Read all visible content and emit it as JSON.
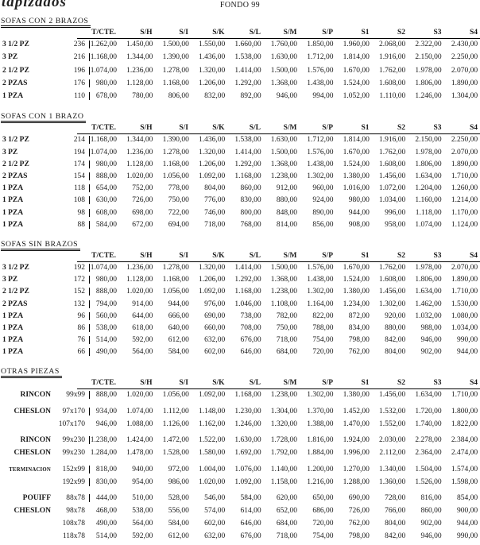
{
  "header": {
    "logo": "tapizados",
    "title": "FONDO 99"
  },
  "columns": [
    "T/CTE.",
    "S/H",
    "S/I",
    "S/K",
    "S/L",
    "S/M",
    "S/P",
    "S1",
    "S2",
    "S3",
    "S4"
  ],
  "sections": [
    {
      "title": "SOFAS CON 2 BRAZOS",
      "rows": [
        {
          "label": "3 1/2 PZ",
          "size": "236",
          "prices": [
            "1.262,00",
            "1.450,00",
            "1.500,00",
            "1.550,00",
            "1.660,00",
            "1.760,00",
            "1.850,00",
            "1.960,00",
            "2.068,00",
            "2.322,00",
            "2.430,00"
          ]
        },
        {
          "label": "3 PZ",
          "size": "216",
          "prices": [
            "1.168,00",
            "1.344,00",
            "1.390,00",
            "1.436,00",
            "1.538,00",
            "1.630,00",
            "1.712,00",
            "1.814,00",
            "1.916,00",
            "2.150,00",
            "2.250,00"
          ]
        },
        {
          "label": "2 1/2 PZ",
          "size": "196",
          "prices": [
            "1.074,00",
            "1.236,00",
            "1.278,00",
            "1.320,00",
            "1.414,00",
            "1.500,00",
            "1.576,00",
            "1.670,00",
            "1.762,00",
            "1.978,00",
            "2.070,00"
          ]
        },
        {
          "label": "2 PZAS",
          "size": "176",
          "prices": [
            "980,00",
            "1.128,00",
            "1.168,00",
            "1.206,00",
            "1.292,00",
            "1.368,00",
            "1.438,00",
            "1.524,00",
            "1.608,00",
            "1.806,00",
            "1.890,00"
          ]
        },
        {
          "label": "1 PZA",
          "size": "110",
          "prices": [
            "678,00",
            "780,00",
            "806,00",
            "832,00",
            "892,00",
            "946,00",
            "994,00",
            "1.052,00",
            "1.110,00",
            "1.246,00",
            "1.304,00"
          ]
        }
      ]
    },
    {
      "title": "SOFAS CON 1 BRAZO",
      "rows": [
        {
          "label": "3 1/2 PZ",
          "size": "214",
          "prices": [
            "1.168,00",
            "1.344,00",
            "1.390,00",
            "1.436,00",
            "1.538,00",
            "1.630,00",
            "1.712,00",
            "1.814,00",
            "1.916,00",
            "2.150,00",
            "2.250,00"
          ]
        },
        {
          "label": "3 PZ",
          "size": "194",
          "prices": [
            "1.074,00",
            "1.236,00",
            "1.278,00",
            "1.320,00",
            "1.414,00",
            "1.500,00",
            "1.576,00",
            "1.670,00",
            "1.762,00",
            "1.978,00",
            "2.070,00"
          ]
        },
        {
          "label": "2 1/2 PZ",
          "size": "174",
          "prices": [
            "980,00",
            "1.128,00",
            "1.168,00",
            "1.206,00",
            "1.292,00",
            "1.368,00",
            "1.438,00",
            "1.524,00",
            "1.608,00",
            "1.806,00",
            "1.890,00"
          ]
        },
        {
          "label": "2 PZAS",
          "size": "154",
          "prices": [
            "888,00",
            "1.020,00",
            "1.056,00",
            "1.092,00",
            "1.168,00",
            "1.238,00",
            "1.302,00",
            "1.380,00",
            "1.456,00",
            "1.634,00",
            "1.710,00"
          ]
        },
        {
          "label": "1 PZA",
          "size": "118",
          "prices": [
            "654,00",
            "752,00",
            "778,00",
            "804,00",
            "860,00",
            "912,00",
            "960,00",
            "1.016,00",
            "1.072,00",
            "1.204,00",
            "1.260,00"
          ]
        },
        {
          "label": "1 PZA",
          "size": "108",
          "prices": [
            "630,00",
            "726,00",
            "750,00",
            "776,00",
            "830,00",
            "880,00",
            "924,00",
            "980,00",
            "1.034,00",
            "1.160,00",
            "1.214,00"
          ]
        },
        {
          "label": "1 PZA",
          "size": "98",
          "prices": [
            "608,00",
            "698,00",
            "722,00",
            "746,00",
            "800,00",
            "848,00",
            "890,00",
            "944,00",
            "996,00",
            "1.118,00",
            "1.170,00"
          ]
        },
        {
          "label": "1 PZA",
          "size": "88",
          "prices": [
            "584,00",
            "672,00",
            "694,00",
            "718,00",
            "768,00",
            "814,00",
            "856,00",
            "908,00",
            "958,00",
            "1.074,00",
            "1.124,00"
          ]
        }
      ]
    },
    {
      "title": "SOFAS SIN BRAZOS",
      "rows": [
        {
          "label": "3 1/2 PZ",
          "size": "192",
          "prices": [
            "1.074,00",
            "1.236,00",
            "1.278,00",
            "1.320,00",
            "1.414,00",
            "1.500,00",
            "1.576,00",
            "1.670,00",
            "1.762,00",
            "1.978,00",
            "2.070,00"
          ]
        },
        {
          "label": "3 PZ",
          "size": "172",
          "prices": [
            "980,00",
            "1.128,00",
            "1.168,00",
            "1.206,00",
            "1.292,00",
            "1.368,00",
            "1.438,00",
            "1.524,00",
            "1.608,00",
            "1.806,00",
            "1.890,00"
          ]
        },
        {
          "label": "2 1/2 PZ",
          "size": "152",
          "prices": [
            "888,00",
            "1.020,00",
            "1.056,00",
            "1.092,00",
            "1.168,00",
            "1.238,00",
            "1.302,00",
            "1.380,00",
            "1.456,00",
            "1.634,00",
            "1.710,00"
          ]
        },
        {
          "label": "2 PZAS",
          "size": "132",
          "prices": [
            "794,00",
            "914,00",
            "944,00",
            "976,00",
            "1.046,00",
            "1.108,00",
            "1.164,00",
            "1.234,00",
            "1.302,00",
            "1.462,00",
            "1.530,00"
          ]
        },
        {
          "label": "1 PZA",
          "size": "96",
          "prices": [
            "560,00",
            "644,00",
            "666,00",
            "690,00",
            "738,00",
            "782,00",
            "822,00",
            "872,00",
            "920,00",
            "1.032,00",
            "1.080,00"
          ]
        },
        {
          "label": "1 PZA",
          "size": "86",
          "prices": [
            "538,00",
            "618,00",
            "640,00",
            "660,00",
            "708,00",
            "750,00",
            "788,00",
            "834,00",
            "880,00",
            "988,00",
            "1.034,00"
          ]
        },
        {
          "label": "1 PZA",
          "size": "76",
          "prices": [
            "514,00",
            "592,00",
            "612,00",
            "632,00",
            "676,00",
            "718,00",
            "754,00",
            "798,00",
            "842,00",
            "946,00",
            "990,00"
          ]
        },
        {
          "label": "1 PZA",
          "size": "66",
          "prices": [
            "490,00",
            "564,00",
            "584,00",
            "602,00",
            "646,00",
            "684,00",
            "720,00",
            "762,00",
            "804,00",
            "902,00",
            "944,00"
          ]
        }
      ]
    },
    {
      "title": "OTRAS PIEZAS",
      "right_labels": true,
      "rows": [
        {
          "label": "RINCON",
          "size": "99x99",
          "bar": true,
          "prices": [
            "888,00",
            "1.020,00",
            "1.056,00",
            "1.092,00",
            "1.168,00",
            "1.238,00",
            "1.302,00",
            "1.380,00",
            "1.456,00",
            "1.634,00",
            "1.710,00"
          ]
        },
        {
          "label": "CHESLON",
          "size": "97x170",
          "gap": true,
          "bar": true,
          "prices": [
            "934,00",
            "1.074,00",
            "1.112,00",
            "1.148,00",
            "1.230,00",
            "1.304,00",
            "1.370,00",
            "1.452,00",
            "1.532,00",
            "1.720,00",
            "1.800,00"
          ]
        },
        {
          "label": "",
          "size": "107x170",
          "bar": false,
          "prices": [
            "946,00",
            "1.088,00",
            "1.126,00",
            "1.162,00",
            "1.246,00",
            "1.320,00",
            "1.388,00",
            "1.470,00",
            "1.552,00",
            "1.740,00",
            "1.822,00"
          ]
        },
        {
          "label": "RINCON",
          "size": "99x230",
          "gap": true,
          "bar": true,
          "prices": [
            "1.238,00",
            "1.424,00",
            "1.472,00",
            "1.522,00",
            "1.630,00",
            "1.728,00",
            "1.816,00",
            "1.924,00",
            "2.030,00",
            "2.278,00",
            "2.384,00"
          ]
        },
        {
          "label": "CHESLON",
          "size": "99x230",
          "bar": false,
          "prices": [
            "1.284,00",
            "1.478,00",
            "1.528,00",
            "1.580,00",
            "1.692,00",
            "1.792,00",
            "1.884,00",
            "1.996,00",
            "2.112,00",
            "2.364,00",
            "2.474,00"
          ]
        },
        {
          "label": "TERMINACION",
          "size": "152x99",
          "gap": true,
          "bar": true,
          "small": true,
          "prices": [
            "818,00",
            "940,00",
            "972,00",
            "1.004,00",
            "1.076,00",
            "1.140,00",
            "1.200,00",
            "1.270,00",
            "1.340,00",
            "1.504,00",
            "1.574,00"
          ]
        },
        {
          "label": "",
          "size": "192x99",
          "bar": true,
          "prices": [
            "830,00",
            "954,00",
            "986,00",
            "1.020,00",
            "1.092,00",
            "1.158,00",
            "1.216,00",
            "1.288,00",
            "1.360,00",
            "1.526,00",
            "1.598,00"
          ]
        },
        {
          "label": "POUIFF",
          "size": "88x78",
          "gap": true,
          "bar": true,
          "prices": [
            "444,00",
            "510,00",
            "528,00",
            "546,00",
            "584,00",
            "620,00",
            "650,00",
            "690,00",
            "728,00",
            "816,00",
            "854,00"
          ]
        },
        {
          "label": "CHESLON",
          "size": "98x78",
          "bar": false,
          "prices": [
            "468,00",
            "538,00",
            "556,00",
            "574,00",
            "614,00",
            "652,00",
            "686,00",
            "726,00",
            "766,00",
            "860,00",
            "900,00"
          ]
        },
        {
          "label": "",
          "size": "108x78",
          "bar": false,
          "prices": [
            "490,00",
            "564,00",
            "584,00",
            "602,00",
            "646,00",
            "684,00",
            "720,00",
            "762,00",
            "804,00",
            "902,00",
            "944,00"
          ]
        },
        {
          "label": "",
          "size": "118x78",
          "bar": false,
          "prices": [
            "514,00",
            "592,00",
            "612,00",
            "632,00",
            "676,00",
            "718,00",
            "754,00",
            "798,00",
            "842,00",
            "946,00",
            "990,00"
          ]
        }
      ]
    }
  ]
}
